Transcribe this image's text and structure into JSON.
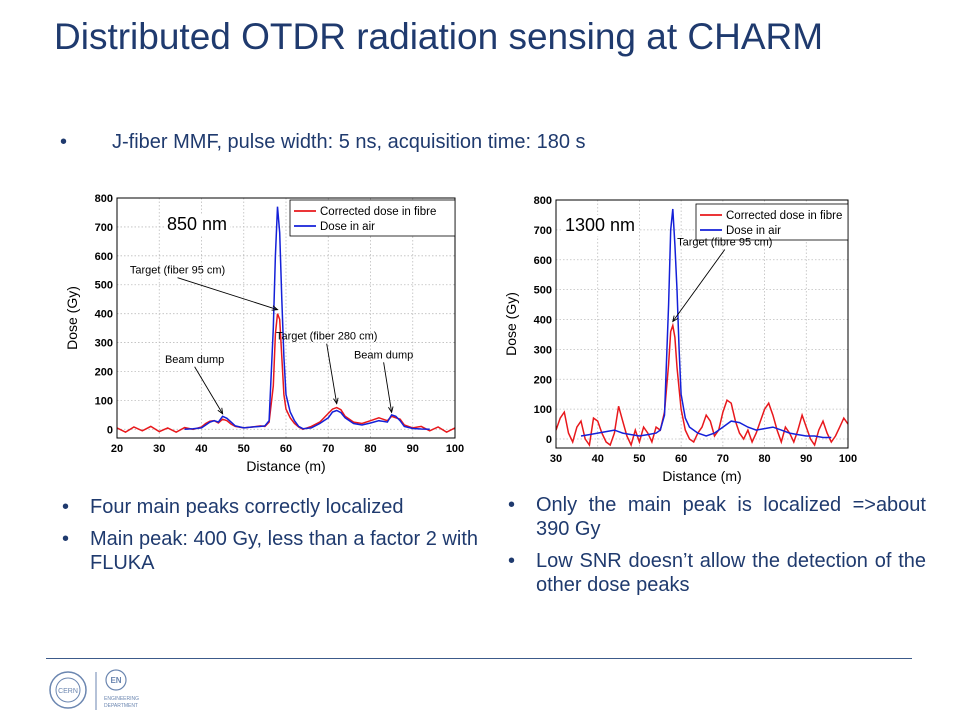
{
  "slide": {
    "title": "Distributed OTDR radiation sensing at CHARM",
    "subtitle": "J-fiber MMF, pulse width: 5 ns, acquisition time: 180 s",
    "left_bullets": [
      "Four main peaks correctly localized",
      "Main peak: 400 Gy, less than a factor 2 with FLUKA"
    ],
    "right_bullets": [
      "Only the main peak is localized =>about 390 Gy",
      "Low SNR doesn’t allow the detection of the other dose peaks"
    ],
    "logos": {
      "cern": "CERN",
      "en": "EN",
      "en_text_1": "ENGINEERING",
      "en_text_2": "DEPARTMENT"
    }
  },
  "colors": {
    "title": "#1f3a6e",
    "fibre": "#e8181c",
    "air": "#1420d8"
  },
  "chart_data": [
    {
      "type": "line",
      "panel_label": "850 nm",
      "xlabel": "Distance (m)",
      "ylabel": "Dose (Gy)",
      "xlim": [
        20,
        100
      ],
      "ylim": [
        -30,
        800
      ],
      "xticks": [
        20,
        30,
        40,
        50,
        60,
        70,
        80,
        90,
        100
      ],
      "yticks": [
        0,
        100,
        200,
        300,
        400,
        500,
        600,
        700,
        800
      ],
      "grid": true,
      "legend": "top-right",
      "series": [
        {
          "name": "Corrected dose in fibre",
          "color": "#e8181c",
          "x": [
            20,
            22,
            24,
            26,
            28,
            30,
            32,
            34,
            36,
            38,
            40,
            41,
            42,
            43,
            44,
            45,
            46,
            47,
            48,
            50,
            52,
            54,
            55,
            56,
            57,
            57.5,
            58,
            58.5,
            59,
            59.5,
            60,
            61,
            62,
            63,
            64,
            66,
            68,
            70,
            71,
            72,
            73,
            74,
            76,
            78,
            80,
            82,
            84,
            85,
            86,
            87,
            88,
            90,
            92,
            94,
            96,
            98,
            100
          ],
          "y": [
            5,
            -10,
            8,
            -5,
            10,
            -8,
            5,
            -10,
            6,
            0,
            8,
            20,
            28,
            30,
            22,
            35,
            30,
            18,
            10,
            5,
            8,
            12,
            10,
            25,
            150,
            330,
            400,
            380,
            250,
            120,
            70,
            40,
            20,
            8,
            0,
            10,
            25,
            55,
            70,
            75,
            68,
            45,
            25,
            20,
            30,
            40,
            30,
            45,
            40,
            35,
            15,
            5,
            10,
            -5,
            8,
            -10,
            5
          ]
        },
        {
          "name": "Dose in air",
          "color": "#1420d8",
          "x": [
            36,
            38,
            40,
            41,
            42,
            43,
            44,
            45,
            46,
            47,
            48,
            50,
            52,
            54,
            55,
            56,
            57,
            57.5,
            58,
            58.5,
            59,
            59.5,
            60,
            61,
            62,
            63,
            64,
            66,
            68,
            70,
            71,
            72,
            73,
            74,
            76,
            78,
            80,
            82,
            84,
            85,
            86,
            87,
            88,
            90,
            92,
            94
          ],
          "y": [
            0,
            2,
            5,
            15,
            25,
            30,
            25,
            45,
            38,
            25,
            12,
            5,
            8,
            10,
            12,
            30,
            350,
            600,
            770,
            680,
            450,
            250,
            120,
            60,
            30,
            10,
            2,
            5,
            20,
            40,
            60,
            65,
            58,
            40,
            20,
            15,
            22,
            30,
            25,
            50,
            45,
            30,
            10,
            3,
            1,
            0
          ]
        }
      ],
      "annotations": [
        {
          "text": "Target (fiber 95 cm)",
          "x": 58,
          "y": 400
        },
        {
          "text": "Beam dump",
          "x": 45,
          "y": 40
        },
        {
          "text": "Target (fiber 280 cm)",
          "x": 72,
          "y": 75
        },
        {
          "text": "Beam dump",
          "x": 85,
          "y": 45
        }
      ]
    },
    {
      "type": "line",
      "panel_label": "1300 nm",
      "xlabel": "Distance (m)",
      "ylabel": "Dose (Gy)",
      "xlim": [
        30,
        100
      ],
      "ylim": [
        -30,
        800
      ],
      "xticks": [
        30,
        40,
        50,
        60,
        70,
        80,
        90,
        100
      ],
      "yticks": [
        0,
        100,
        200,
        300,
        400,
        500,
        600,
        700,
        800
      ],
      "grid": true,
      "legend": "top-right",
      "series": [
        {
          "name": "Corrected dose in fibre",
          "color": "#e8181c",
          "x": [
            30,
            31,
            32,
            33,
            34,
            35,
            36,
            37,
            38,
            39,
            40,
            41,
            42,
            43,
            44,
            45,
            46,
            47,
            48,
            49,
            50,
            51,
            52,
            53,
            54,
            55,
            56,
            57,
            57.5,
            58,
            58.5,
            59,
            60,
            61,
            62,
            63,
            64,
            65,
            66,
            67,
            68,
            69,
            70,
            71,
            72,
            73,
            74,
            75,
            76,
            77,
            78,
            79,
            80,
            81,
            82,
            83,
            84,
            85,
            86,
            87,
            88,
            89,
            90,
            91,
            92,
            93,
            94,
            95,
            96,
            97,
            98,
            99,
            100
          ],
          "y": [
            30,
            70,
            90,
            20,
            -10,
            40,
            60,
            0,
            -20,
            70,
            60,
            20,
            -10,
            -20,
            20,
            110,
            60,
            10,
            -20,
            30,
            -10,
            40,
            20,
            -10,
            40,
            30,
            90,
            250,
            360,
            380,
            340,
            240,
            100,
            30,
            0,
            -10,
            20,
            40,
            80,
            60,
            10,
            30,
            90,
            130,
            120,
            60,
            20,
            0,
            30,
            -10,
            20,
            60,
            100,
            120,
            80,
            30,
            -10,
            40,
            20,
            -10,
            30,
            80,
            40,
            0,
            -20,
            30,
            60,
            20,
            -10,
            10,
            40,
            70,
            50
          ]
        },
        {
          "name": "Dose in air",
          "color": "#1420d8",
          "x": [
            36,
            38,
            40,
            42,
            44,
            46,
            48,
            50,
            52,
            54,
            55,
            56,
            57,
            57.5,
            58,
            58.5,
            59,
            59.5,
            60,
            61,
            62,
            64,
            66,
            68,
            70,
            72,
            74,
            76,
            78,
            80,
            82,
            84,
            86,
            88,
            90,
            92,
            94,
            96
          ],
          "y": [
            10,
            15,
            20,
            25,
            30,
            20,
            15,
            10,
            15,
            20,
            30,
            80,
            450,
            700,
            770,
            650,
            500,
            300,
            150,
            70,
            40,
            20,
            10,
            20,
            40,
            60,
            55,
            40,
            30,
            35,
            40,
            30,
            20,
            15,
            10,
            10,
            5,
            5
          ]
        }
      ],
      "annotations": [
        {
          "text": "Target (fibre 95 cm)",
          "x": 58,
          "y": 380
        }
      ]
    }
  ]
}
